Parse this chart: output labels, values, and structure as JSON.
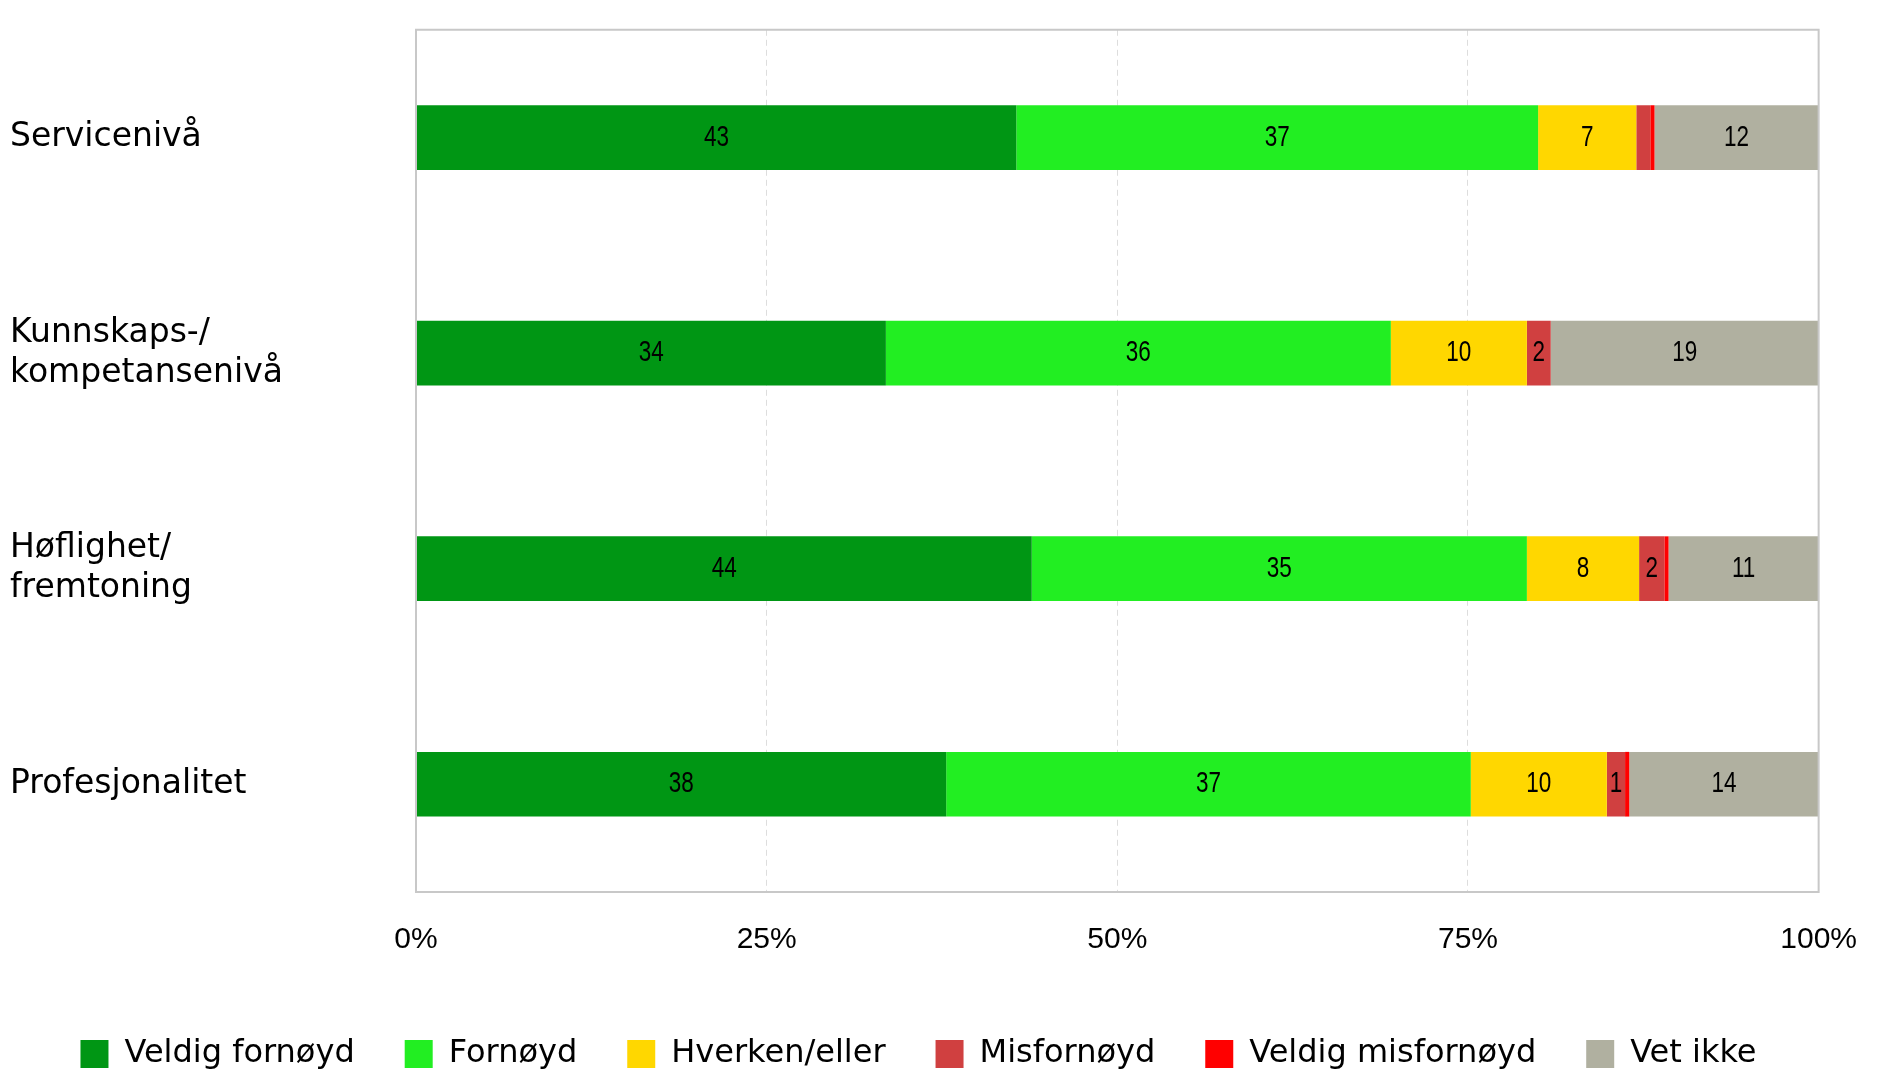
{
  "chart_data": {
    "type": "bar",
    "orientation": "horizontal",
    "stacked": true,
    "categories": [
      "Servicenivå",
      "Kunnskaps-/\nkompetansenivå",
      "Høflighet/\nfremtoning",
      "Profesjonalitet"
    ],
    "series": [
      {
        "name": "Veldig fornøyd",
        "color": "#009614",
        "values": [
          42.8,
          33.5,
          43.9,
          37.8
        ],
        "value_labels": [
          "43",
          "34",
          "44",
          "38"
        ]
      },
      {
        "name": "Fornøyd",
        "color": "#22ee22",
        "values": [
          37.2,
          36,
          35.3,
          37.4
        ],
        "value_labels": [
          "37",
          "36",
          "35",
          "37"
        ]
      },
      {
        "name": "Hverken/eller",
        "color": "#ffd700",
        "values": [
          7,
          9.7,
          8,
          9.7
        ],
        "value_labels": [
          "7",
          "10",
          "8",
          "10"
        ]
      },
      {
        "name": "Misfornøyd",
        "color": "#d04040",
        "values": [
          1,
          1.7,
          1.8,
          1.3
        ],
        "value_labels": [
          null,
          "2",
          "2",
          "1"
        ]
      },
      {
        "name": "Veldig misfornøyd",
        "color": "#ff0000",
        "values": [
          0.3,
          0,
          0.3,
          0.3
        ],
        "value_labels": [
          null,
          null,
          null,
          null
        ]
      },
      {
        "name": "Vet ikke",
        "color": "#b0b0a0",
        "values": [
          11.7,
          19.1,
          10.7,
          13.5
        ],
        "value_labels": [
          "12",
          "19",
          "11",
          "14"
        ]
      }
    ],
    "xlim": [
      0,
      100
    ],
    "xticks": [
      {
        "value": 0,
        "label": "0%"
      },
      {
        "value": 25,
        "label": "25%"
      },
      {
        "value": 50,
        "label": "50%"
      },
      {
        "value": 75,
        "label": "75%"
      },
      {
        "value": 100,
        "label": "100%"
      }
    ],
    "grid": "x",
    "legend": "bottom"
  }
}
